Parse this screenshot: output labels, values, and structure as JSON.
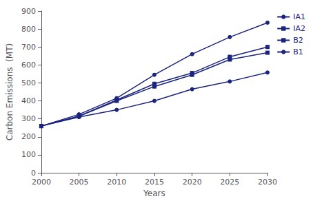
{
  "chart_data": {
    "type": "line",
    "x": [
      2000,
      2005,
      2010,
      2015,
      2020,
      2025,
      2030
    ],
    "series": [
      {
        "name": "IA1",
        "color": "#1a237e",
        "marker": "circle",
        "values": [
          260,
          325,
          415,
          545,
          660,
          755,
          835
        ]
      },
      {
        "name": "IA2",
        "color": "#1a237e",
        "marker": "square",
        "values": [
          260,
          315,
          405,
          495,
          555,
          645,
          700
        ]
      },
      {
        "name": "B2",
        "color": "#1a237e",
        "marker": "square",
        "values": [
          260,
          315,
          400,
          480,
          545,
          630,
          668
        ]
      },
      {
        "name": "B1",
        "color": "#1a237e",
        "marker": "circle",
        "values": [
          260,
          310,
          350,
          400,
          465,
          508,
          558
        ]
      }
    ],
    "xlabel": "Years",
    "ylabel": "Carbon Emissions  (MT)",
    "xlim": [
      2000,
      2030
    ],
    "ylim": [
      0,
      900
    ],
    "xticks": [
      2000,
      2005,
      2010,
      2015,
      2020,
      2025,
      2030
    ],
    "yticks": [
      0,
      100,
      200,
      300,
      400,
      500,
      600,
      700,
      800,
      900
    ],
    "grid": false,
    "legend": "right"
  }
}
